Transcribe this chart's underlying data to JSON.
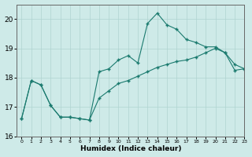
{
  "title": "",
  "xlabel": "Humidex (Indice chaleur)",
  "ylabel": "",
  "background_color": "#ceeae8",
  "line_color": "#1a7a6e",
  "grid_color": "#afd4d0",
  "upper_x": [
    0,
    1,
    2,
    3,
    4,
    5,
    6,
    7,
    8,
    9,
    10,
    11,
    12,
    13,
    14,
    15,
    16,
    17,
    18,
    19,
    20,
    21,
    22,
    23
  ],
  "upper_y": [
    16.6,
    17.9,
    17.75,
    17.05,
    16.65,
    16.65,
    16.6,
    16.55,
    18.2,
    18.3,
    18.6,
    18.75,
    18.5,
    19.85,
    20.2,
    19.8,
    19.65,
    19.3,
    19.2,
    19.05,
    19.05,
    18.85,
    18.45,
    18.3
  ],
  "lower_x": [
    0,
    1,
    2,
    3,
    4,
    5,
    6,
    7,
    8,
    9,
    10,
    11,
    12,
    13,
    14,
    15,
    16,
    17,
    18,
    19,
    20,
    21,
    22,
    23
  ],
  "lower_y": [
    16.6,
    17.9,
    17.75,
    17.05,
    16.65,
    16.65,
    16.6,
    16.55,
    17.3,
    17.55,
    17.8,
    17.9,
    18.05,
    18.2,
    18.35,
    18.45,
    18.55,
    18.6,
    18.7,
    18.85,
    19.0,
    18.85,
    18.25,
    18.3
  ],
  "ylim": [
    16,
    20.5
  ],
  "xlim": [
    -0.5,
    23
  ],
  "yticks": [
    16,
    17,
    18,
    19,
    20
  ],
  "xticks": [
    0,
    1,
    2,
    3,
    4,
    5,
    6,
    7,
    8,
    9,
    10,
    11,
    12,
    13,
    14,
    15,
    16,
    17,
    18,
    19,
    20,
    21,
    22,
    23
  ]
}
